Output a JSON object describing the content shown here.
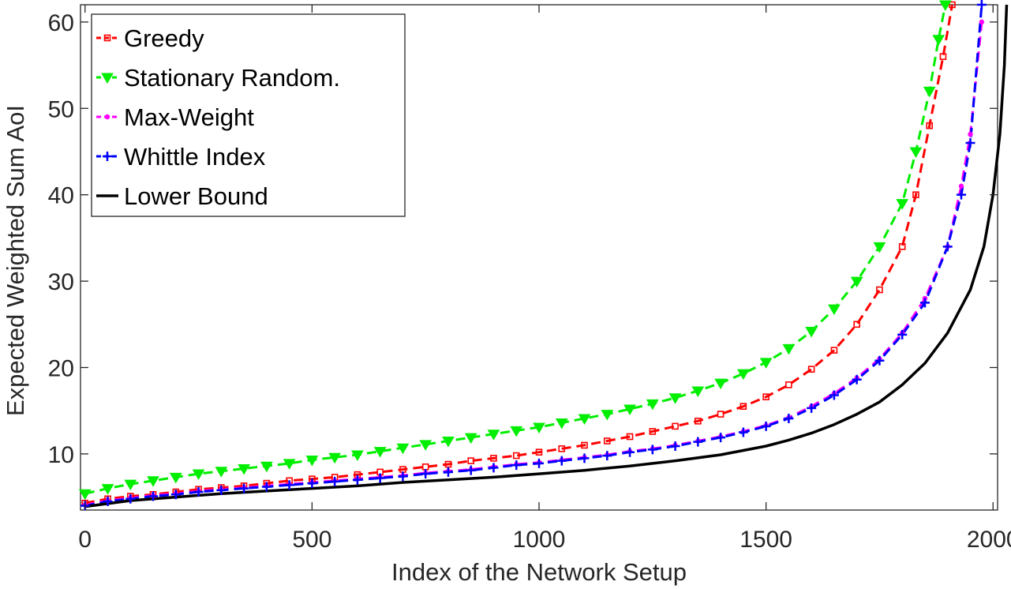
{
  "chart_data": {
    "type": "line",
    "title": "",
    "xlabel": "Index of the Network Setup",
    "ylabel": "Expected Weighted Sum AoI",
    "xlim": [
      -10,
      2010
    ],
    "ylim": [
      3.5,
      62
    ],
    "xticks": [
      0,
      500,
      1000,
      1500,
      2000
    ],
    "yticks": [
      10,
      20,
      30,
      40,
      50,
      60
    ],
    "grid": false,
    "legend_position": "top-left",
    "series": [
      {
        "name": "Greedy",
        "color": "#ff0000",
        "style": "dashed",
        "marker": "square",
        "points": [
          [
            0,
            4.3
          ],
          [
            50,
            4.8
          ],
          [
            100,
            5.1
          ],
          [
            150,
            5.3
          ],
          [
            200,
            5.6
          ],
          [
            250,
            5.9
          ],
          [
            300,
            6.1
          ],
          [
            350,
            6.3
          ],
          [
            400,
            6.6
          ],
          [
            450,
            6.9
          ],
          [
            500,
            7.1
          ],
          [
            550,
            7.3
          ],
          [
            600,
            7.6
          ],
          [
            650,
            7.9
          ],
          [
            700,
            8.2
          ],
          [
            750,
            8.5
          ],
          [
            800,
            8.8
          ],
          [
            850,
            9.2
          ],
          [
            900,
            9.5
          ],
          [
            950,
            9.8
          ],
          [
            1000,
            10.2
          ],
          [
            1050,
            10.6
          ],
          [
            1100,
            11.0
          ],
          [
            1150,
            11.5
          ],
          [
            1200,
            12.0
          ],
          [
            1250,
            12.6
          ],
          [
            1300,
            13.2
          ],
          [
            1350,
            13.8
          ],
          [
            1400,
            14.6
          ],
          [
            1450,
            15.5
          ],
          [
            1500,
            16.6
          ],
          [
            1550,
            18.0
          ],
          [
            1600,
            19.8
          ],
          [
            1650,
            22.0
          ],
          [
            1700,
            25.0
          ],
          [
            1750,
            29.0
          ],
          [
            1800,
            34.0
          ],
          [
            1830,
            40.0
          ],
          [
            1860,
            48.0
          ],
          [
            1890,
            56.0
          ],
          [
            1910,
            62.0
          ]
        ]
      },
      {
        "name": "Stationary Random.",
        "color": "#00ee00",
        "style": "dashed",
        "marker": "triangle-down",
        "points": [
          [
            0,
            5.4
          ],
          [
            50,
            6.0
          ],
          [
            100,
            6.5
          ],
          [
            150,
            6.9
          ],
          [
            200,
            7.3
          ],
          [
            250,
            7.7
          ],
          [
            300,
            8.0
          ],
          [
            350,
            8.3
          ],
          [
            400,
            8.6
          ],
          [
            450,
            8.9
          ],
          [
            500,
            9.3
          ],
          [
            550,
            9.6
          ],
          [
            600,
            9.9
          ],
          [
            650,
            10.3
          ],
          [
            700,
            10.7
          ],
          [
            750,
            11.1
          ],
          [
            800,
            11.5
          ],
          [
            850,
            11.9
          ],
          [
            900,
            12.3
          ],
          [
            950,
            12.7
          ],
          [
            1000,
            13.1
          ],
          [
            1050,
            13.6
          ],
          [
            1100,
            14.1
          ],
          [
            1150,
            14.6
          ],
          [
            1200,
            15.2
          ],
          [
            1250,
            15.8
          ],
          [
            1300,
            16.5
          ],
          [
            1350,
            17.3
          ],
          [
            1400,
            18.2
          ],
          [
            1450,
            19.3
          ],
          [
            1500,
            20.6
          ],
          [
            1550,
            22.2
          ],
          [
            1600,
            24.2
          ],
          [
            1650,
            26.8
          ],
          [
            1700,
            30.0
          ],
          [
            1750,
            34.0
          ],
          [
            1800,
            39.0
          ],
          [
            1830,
            45.0
          ],
          [
            1860,
            52.0
          ],
          [
            1880,
            58.0
          ],
          [
            1895,
            62.0
          ]
        ]
      },
      {
        "name": "Max-Weight",
        "color": "#ff00ff",
        "style": "dashed",
        "marker": "dot",
        "points": [
          [
            0,
            4.1
          ],
          [
            50,
            4.6
          ],
          [
            100,
            4.9
          ],
          [
            150,
            5.2
          ],
          [
            200,
            5.4
          ],
          [
            250,
            5.7
          ],
          [
            300,
            5.9
          ],
          [
            350,
            6.1
          ],
          [
            400,
            6.3
          ],
          [
            450,
            6.5
          ],
          [
            500,
            6.7
          ],
          [
            550,
            6.9
          ],
          [
            600,
            7.1
          ],
          [
            650,
            7.3
          ],
          [
            700,
            7.5
          ],
          [
            750,
            7.8
          ],
          [
            800,
            8.0
          ],
          [
            850,
            8.2
          ],
          [
            900,
            8.5
          ],
          [
            950,
            8.8
          ],
          [
            1000,
            9.0
          ],
          [
            1050,
            9.3
          ],
          [
            1100,
            9.6
          ],
          [
            1150,
            9.9
          ],
          [
            1200,
            10.3
          ],
          [
            1250,
            10.6
          ],
          [
            1300,
            11.0
          ],
          [
            1350,
            11.5
          ],
          [
            1400,
            12.0
          ],
          [
            1450,
            12.6
          ],
          [
            1500,
            13.3
          ],
          [
            1550,
            14.2
          ],
          [
            1600,
            15.5
          ],
          [
            1650,
            17.0
          ],
          [
            1700,
            18.8
          ],
          [
            1750,
            21.0
          ],
          [
            1800,
            24.0
          ],
          [
            1850,
            28.0
          ],
          [
            1900,
            34.0
          ],
          [
            1930,
            41.0
          ],
          [
            1950,
            47.0
          ],
          [
            1975,
            60.0
          ]
        ]
      },
      {
        "name": "Whittle Index",
        "color": "#0000ff",
        "style": "dashed",
        "marker": "plus",
        "points": [
          [
            0,
            4.0
          ],
          [
            50,
            4.5
          ],
          [
            100,
            4.8
          ],
          [
            150,
            5.1
          ],
          [
            200,
            5.3
          ],
          [
            250,
            5.6
          ],
          [
            300,
            5.8
          ],
          [
            350,
            6.0
          ],
          [
            400,
            6.2
          ],
          [
            450,
            6.4
          ],
          [
            500,
            6.6
          ],
          [
            550,
            6.8
          ],
          [
            600,
            7.0
          ],
          [
            650,
            7.2
          ],
          [
            700,
            7.4
          ],
          [
            750,
            7.7
          ],
          [
            800,
            7.9
          ],
          [
            850,
            8.1
          ],
          [
            900,
            8.4
          ],
          [
            950,
            8.7
          ],
          [
            1000,
            8.9
          ],
          [
            1050,
            9.2
          ],
          [
            1100,
            9.5
          ],
          [
            1150,
            9.8
          ],
          [
            1200,
            10.2
          ],
          [
            1250,
            10.5
          ],
          [
            1300,
            10.9
          ],
          [
            1350,
            11.4
          ],
          [
            1400,
            11.9
          ],
          [
            1450,
            12.5
          ],
          [
            1500,
            13.2
          ],
          [
            1550,
            14.1
          ],
          [
            1600,
            15.3
          ],
          [
            1650,
            16.8
          ],
          [
            1700,
            18.6
          ],
          [
            1750,
            20.8
          ],
          [
            1800,
            23.8
          ],
          [
            1850,
            27.5
          ],
          [
            1900,
            34.0
          ],
          [
            1930,
            40.0
          ],
          [
            1950,
            46.0
          ],
          [
            1975,
            62.0
          ]
        ]
      },
      {
        "name": "Lower Bound",
        "color": "#000000",
        "style": "solid",
        "marker": "none",
        "points": [
          [
            0,
            3.9
          ],
          [
            100,
            4.6
          ],
          [
            200,
            5.0
          ],
          [
            300,
            5.4
          ],
          [
            400,
            5.7
          ],
          [
            500,
            6.0
          ],
          [
            600,
            6.3
          ],
          [
            700,
            6.7
          ],
          [
            800,
            7.0
          ],
          [
            900,
            7.3
          ],
          [
            1000,
            7.7
          ],
          [
            1100,
            8.1
          ],
          [
            1200,
            8.6
          ],
          [
            1300,
            9.2
          ],
          [
            1400,
            9.9
          ],
          [
            1500,
            10.9
          ],
          [
            1550,
            11.6
          ],
          [
            1600,
            12.4
          ],
          [
            1650,
            13.4
          ],
          [
            1700,
            14.6
          ],
          [
            1750,
            16.0
          ],
          [
            1800,
            18.0
          ],
          [
            1850,
            20.5
          ],
          [
            1900,
            24.0
          ],
          [
            1950,
            29.0
          ],
          [
            1980,
            34.0
          ],
          [
            2000,
            40.0
          ],
          [
            2015,
            47.0
          ],
          [
            2025,
            55.0
          ],
          [
            2030,
            62.0
          ]
        ]
      }
    ]
  }
}
